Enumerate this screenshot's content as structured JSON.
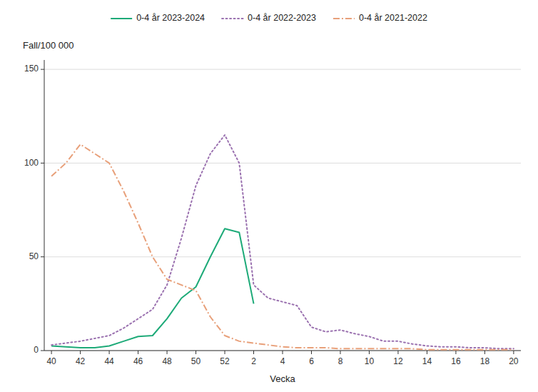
{
  "chart_data": {
    "type": "line",
    "x_label": "Vecka",
    "y_label": "Fall/100 000",
    "categories": [
      "40",
      null,
      "42",
      null,
      "44",
      null,
      "46",
      null,
      "48",
      null,
      "50",
      null,
      "52",
      null,
      "2",
      null,
      "4",
      null,
      "6",
      null,
      "8",
      null,
      "10",
      null,
      "12",
      null,
      "14",
      null,
      "16",
      null,
      "18",
      null,
      "20"
    ],
    "series": [
      {
        "name": "0-4 år 2023-2024",
        "color": "#1daa78",
        "line_style": "solid",
        "values": [
          2.5,
          2.0,
          1.5,
          1.5,
          2.5,
          5.0,
          7.5,
          8.0,
          17.0,
          28.0,
          34.0,
          50.0,
          65.0,
          63.0,
          25.0,
          null,
          null,
          null,
          null,
          null,
          null,
          null,
          null,
          null,
          null,
          null,
          null,
          null,
          null,
          null,
          null,
          null,
          null
        ]
      },
      {
        "name": "0-4 år 2022-2023",
        "color": "#9b72b0",
        "line_style": "dotted",
        "values": [
          3.0,
          4.0,
          5.0,
          6.5,
          8.0,
          12.0,
          17.0,
          22.0,
          35.0,
          60.0,
          88.0,
          105.0,
          115.0,
          100.0,
          35.0,
          28.0,
          26.0,
          24.0,
          12.5,
          10.0,
          11.0,
          9.0,
          7.5,
          5.0,
          5.0,
          3.5,
          2.5,
          2.0,
          2.0,
          1.5,
          1.5,
          1.0,
          1.0
        ]
      },
      {
        "name": "0-4 år 2021-2022",
        "color": "#e8a07a",
        "line_style": "dashdot",
        "values": [
          93.0,
          100.0,
          110.0,
          105.0,
          100.0,
          85.0,
          68.0,
          50.0,
          38.0,
          35.0,
          32.0,
          18.0,
          8.0,
          5.0,
          4.0,
          3.0,
          2.0,
          1.5,
          1.5,
          1.5,
          1.0,
          1.0,
          1.0,
          1.0,
          1.0,
          1.0,
          0.5,
          0.5,
          0.5,
          0.5,
          0.5,
          0.5,
          0.5
        ]
      }
    ],
    "ylim": [
      0,
      155
    ],
    "yticks": [
      0,
      50,
      100,
      150
    ],
    "grid": true,
    "legend": "top"
  }
}
